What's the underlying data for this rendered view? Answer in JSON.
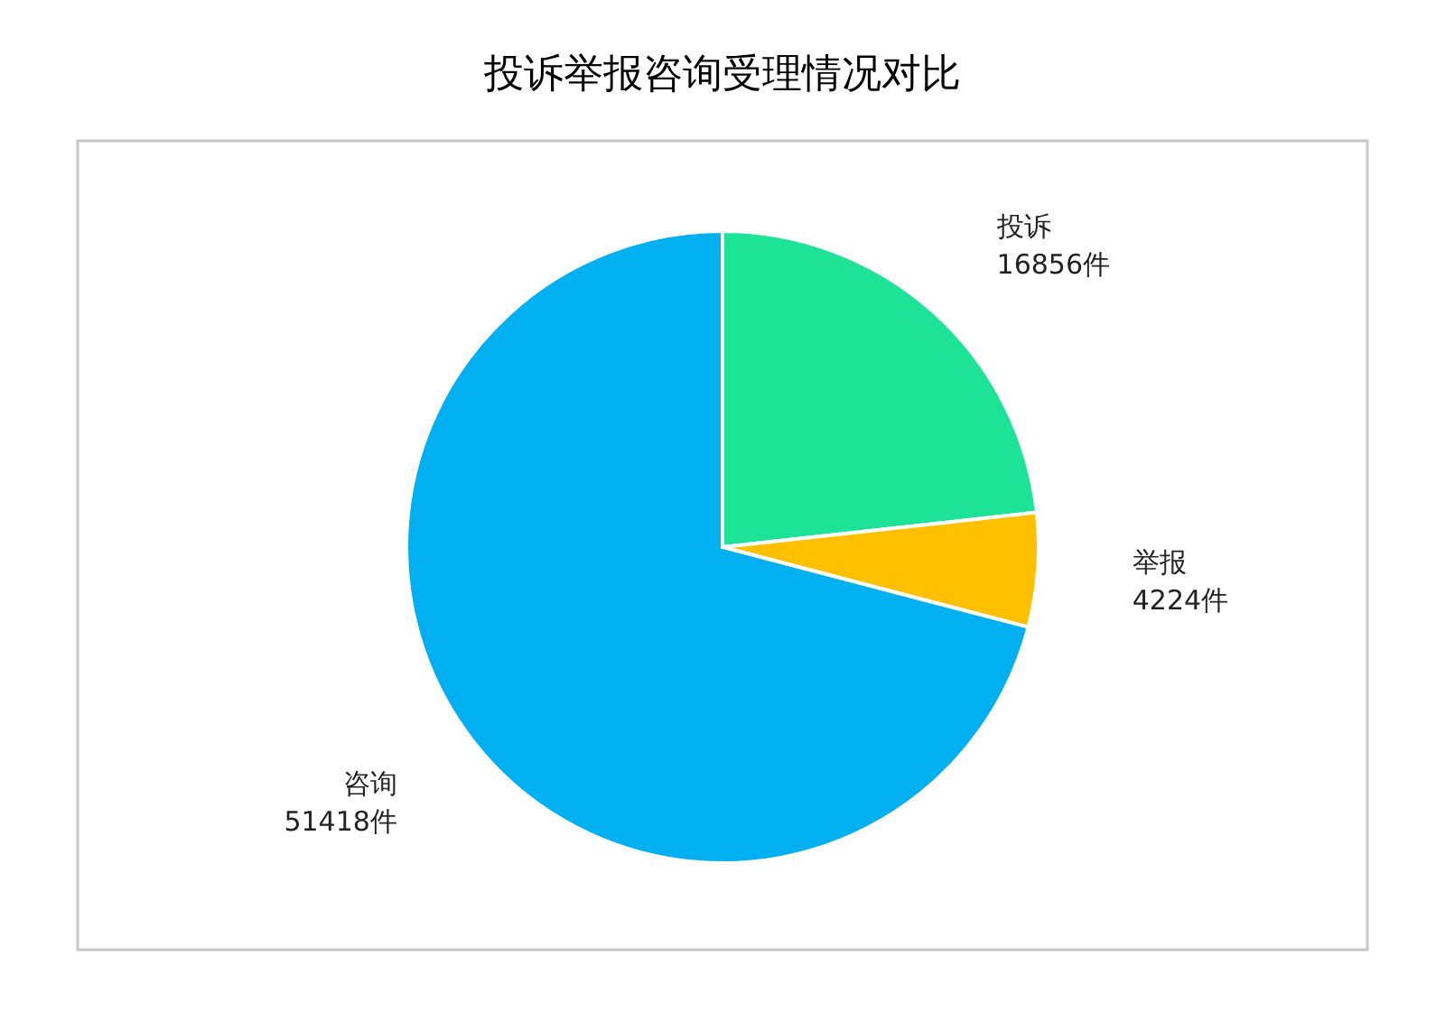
{
  "chart_data": {
    "type": "pie",
    "title": "投诉举报咨询受理情况对比",
    "categories": [
      "投诉",
      "举报",
      "咨询"
    ],
    "values": [
      16856,
      4224,
      51418
    ],
    "colors": [
      "#1de396",
      "#ffc000",
      "#00b0f0"
    ],
    "value_labels": [
      "16856件",
      "4224件",
      "51418件"
    ],
    "legend": false
  }
}
